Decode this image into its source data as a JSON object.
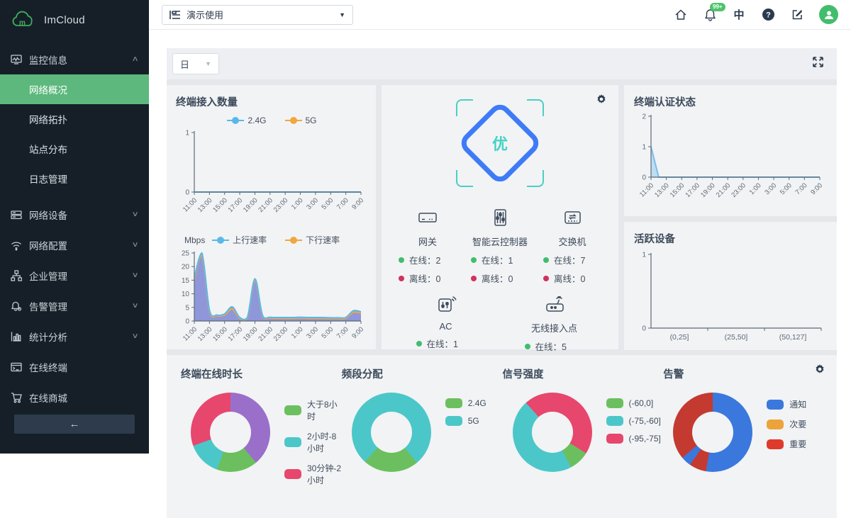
{
  "sidebar": {
    "logo_text": "ImCloud",
    "collapse_arrow": "←",
    "items": [
      {
        "label": "监控信息",
        "icon": "monitor-icon",
        "type": "parent",
        "chevron": "up"
      },
      {
        "label": "网络概况",
        "type": "sub",
        "active": true
      },
      {
        "label": "网络拓扑",
        "type": "sub"
      },
      {
        "label": "站点分布",
        "type": "sub"
      },
      {
        "label": "日志管理",
        "type": "sub"
      },
      {
        "label": "网络设备",
        "icon": "device-icon",
        "type": "parent",
        "chevron": "down"
      },
      {
        "label": "网络配置",
        "icon": "wifi-icon",
        "type": "parent",
        "chevron": "down"
      },
      {
        "label": "企业管理",
        "icon": "org-icon",
        "type": "parent",
        "chevron": "down"
      },
      {
        "label": "告警管理",
        "icon": "alarm-bell-icon",
        "type": "parent",
        "chevron": "down"
      },
      {
        "label": "统计分析",
        "icon": "stats-icon",
        "type": "parent",
        "chevron": "down"
      },
      {
        "label": "在线终端",
        "icon": "terminal-icon",
        "type": "parent"
      },
      {
        "label": "在线商城",
        "icon": "cart-icon",
        "type": "parent"
      }
    ]
  },
  "topbar": {
    "org_selector": {
      "label": "演示使用",
      "icon": "list-icon"
    },
    "notification_badge": "99+",
    "language_label": "中",
    "help_glyph": "?"
  },
  "main": {
    "toolbar": {
      "period": "日"
    },
    "terminal_panel": {
      "title": "终端接入数量"
    },
    "throughput_panel": {
      "unit_label": "Mbps"
    },
    "health_panel": {
      "grade": "优",
      "online_label": "在线",
      "offline_label": "离线",
      "online_color": "#41bd6d",
      "offline_color": "#d2315f",
      "devices": [
        {
          "name": "网关",
          "icon": "gateway-icon",
          "online": 2,
          "offline": 0
        },
        {
          "name": "智能云控制器",
          "icon": "controller-icon",
          "online": 1,
          "offline": 0
        },
        {
          "name": "交换机",
          "icon": "switch-icon",
          "online": 7,
          "offline": 0
        },
        {
          "name": "AC",
          "icon": "ac-icon",
          "online": 1,
          "offline": 0
        },
        {
          "name": "无线接入点",
          "icon": "wireless-ap-icon",
          "online": 5,
          "offline": 0
        }
      ]
    },
    "auth_panel": {
      "title": "终端认证状态"
    },
    "active_panel": {
      "title": "活跃设备"
    }
  },
  "chart_data": [
    {
      "id": "terminal_count",
      "type": "line",
      "title": "终端接入数量",
      "x_labels": [
        "11:00",
        "13:00",
        "15:00",
        "17:00",
        "19:00",
        "21:00",
        "23:00",
        "1:00",
        "3:00",
        "5:00",
        "7:00",
        "9:00"
      ],
      "ylim": [
        0,
        1
      ],
      "yticks": [
        0,
        1
      ],
      "series": [
        {
          "name": "2.4G",
          "color": "#5ab8e8",
          "values": [
            0,
            0,
            0,
            0,
            0,
            0,
            0,
            0,
            0,
            0,
            0,
            0,
            0,
            0,
            0,
            0,
            0,
            0,
            0,
            0,
            0,
            0,
            0
          ]
        },
        {
          "name": "5G",
          "color": "#f0a73e",
          "values": [
            0,
            0,
            0,
            0,
            0,
            0,
            0,
            0,
            0,
            0,
            0,
            0,
            0,
            0,
            0,
            0,
            0,
            0,
            0,
            0,
            0,
            0,
            0
          ]
        }
      ]
    },
    {
      "id": "throughput",
      "type": "area",
      "ylabel": "Mbps",
      "x_labels": [
        "11:00",
        "13:00",
        "15:00",
        "17:00",
        "19:00",
        "21:00",
        "23:00",
        "1:00",
        "3:00",
        "5:00",
        "7:00",
        "9:00"
      ],
      "ylim": [
        0,
        25
      ],
      "yticks": [
        0,
        5,
        10,
        15,
        20,
        25
      ],
      "fill": "#8a90d8",
      "series": [
        {
          "name": "上行速率",
          "color": "#5ab8e8",
          "values": [
            16,
            25,
            4,
            2.2,
            2.6,
            5.2,
            1.3,
            1.3,
            15.5,
            2.2,
            1.4,
            1.3,
            1.3,
            1.3,
            1.4,
            1.3,
            1.3,
            1.3,
            1.2,
            1.2,
            1.3,
            3.8,
            3.4
          ]
        },
        {
          "name": "下行速率",
          "color": "#f0a73e",
          "values": [
            15.2,
            24,
            3.4,
            1.9,
            2.2,
            4.4,
            1,
            1,
            14.8,
            1.8,
            1.1,
            1,
            1,
            1,
            1.1,
            1,
            1,
            1,
            0.9,
            0.9,
            1,
            3.2,
            2.8
          ]
        }
      ]
    },
    {
      "id": "auth_status",
      "type": "area",
      "title": "终端认证状态",
      "x_labels": [
        "11:00",
        "13:00",
        "15:00",
        "17:00",
        "19:00",
        "21:00",
        "23:00",
        "1:00",
        "3:00",
        "5:00",
        "7:00",
        "9:00"
      ],
      "ylim": [
        0,
        2
      ],
      "yticks": [
        0,
        1,
        2
      ],
      "fill": "#b9dbf1",
      "series": [
        {
          "name": "认证数",
          "color": "#7dbde4",
          "values": [
            1,
            0,
            0,
            0,
            0,
            0,
            0,
            0,
            0,
            0,
            0,
            0,
            0,
            0,
            0,
            0,
            0,
            0,
            0,
            0,
            0,
            0,
            0
          ]
        }
      ]
    },
    {
      "id": "active_devices",
      "type": "bar",
      "title": "活跃设备",
      "categories": [
        "(0,25]",
        "(25,50]",
        "(50,127]"
      ],
      "values": [
        0,
        0,
        0
      ],
      "ylim": [
        0,
        1
      ],
      "yticks": [
        0,
        1
      ]
    },
    {
      "id": "online_duration",
      "type": "pie",
      "title": "终端在线时长",
      "segments": [
        {
          "color": "#9a6fc9",
          "deg": 140
        },
        {
          "color": "#6cbf5f",
          "deg": 60
        },
        {
          "color": "#4cc7c9",
          "deg": 50
        },
        {
          "color": "#e7476d",
          "deg": 110
        }
      ],
      "legend": [
        {
          "label": "大于8小时",
          "color": "#6cbf5f"
        },
        {
          "label": "2小时-8小时",
          "color": "#4cc7c9"
        },
        {
          "label": "30分钟-2小时",
          "color": "#e7476d"
        }
      ]
    },
    {
      "id": "band_allocation",
      "type": "pie",
      "title": "频段分配",
      "segments": [
        {
          "color": "#4cc7c9",
          "deg": 140
        },
        {
          "color": "#6cbf5f",
          "deg": 82
        },
        {
          "color": "#4cc7c9",
          "deg": 138
        }
      ],
      "legend": [
        {
          "label": "2.4G",
          "color": "#6cbf5f"
        },
        {
          "label": "5G",
          "color": "#4cc7c9"
        }
      ]
    },
    {
      "id": "signal_strength",
      "type": "pie",
      "title": "信号强度",
      "segments": [
        {
          "color": "#e7476d",
          "deg": 122
        },
        {
          "color": "#6cbf5f",
          "deg": 30
        },
        {
          "color": "#4cc7c9",
          "deg": 166
        },
        {
          "color": "#e7476d",
          "deg": 42
        }
      ],
      "legend": [
        {
          "label": "(-60,0]",
          "color": "#6cbf5f"
        },
        {
          "label": "(-75,-60]",
          "color": "#4cc7c9"
        },
        {
          "label": "(-95,-75]",
          "color": "#e7476d"
        }
      ]
    },
    {
      "id": "alarms",
      "type": "pie",
      "title": "告警",
      "segments": [
        {
          "color": "#3a78dd",
          "deg": 190
        },
        {
          "color": "#c43a30",
          "deg": 25
        },
        {
          "color": "#3a78dd",
          "deg": 15
        },
        {
          "color": "#c43a30",
          "deg": 130
        }
      ],
      "legend": [
        {
          "label": "通知",
          "color": "#3a78dd"
        },
        {
          "label": "次要",
          "color": "#eda33c"
        },
        {
          "label": "重要",
          "color": "#df3a2b"
        }
      ]
    }
  ]
}
